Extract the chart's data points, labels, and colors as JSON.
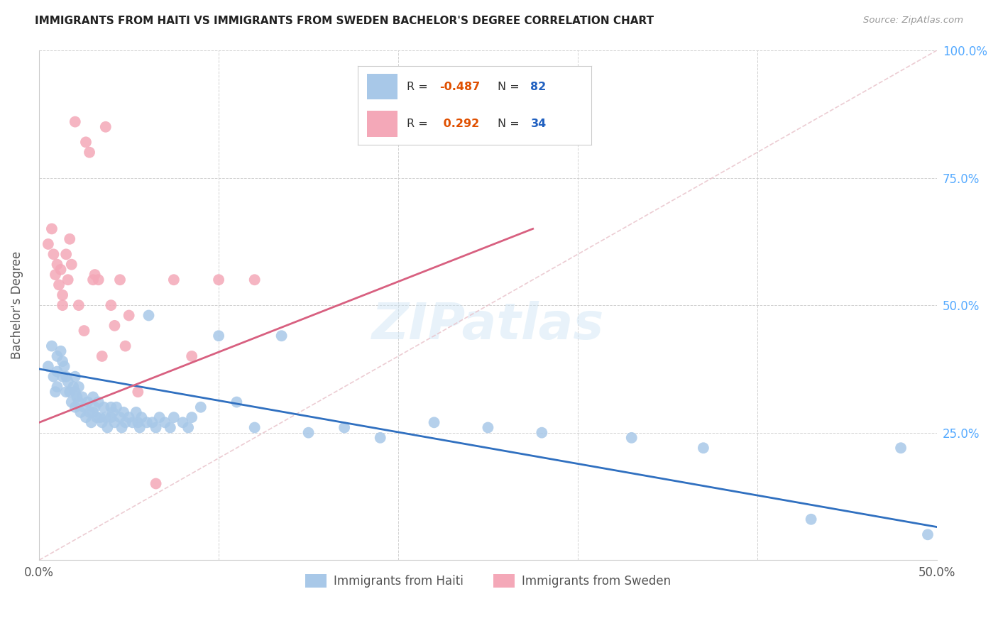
{
  "title": "IMMIGRANTS FROM HAITI VS IMMIGRANTS FROM SWEDEN BACHELOR'S DEGREE CORRELATION CHART",
  "source": "Source: ZipAtlas.com",
  "ylabel_label": "Bachelor's Degree",
  "xlim": [
    0.0,
    0.5
  ],
  "ylim": [
    0.0,
    1.0
  ],
  "haiti_R": -0.487,
  "haiti_N": 82,
  "sweden_R": 0.292,
  "sweden_N": 34,
  "haiti_color": "#a8c8e8",
  "sweden_color": "#f4a8b8",
  "haiti_line_color": "#3070c0",
  "sweden_line_color": "#d86080",
  "diagonal_color": "#e8c0c8",
  "haiti_scatter_x": [
    0.005,
    0.007,
    0.008,
    0.009,
    0.01,
    0.01,
    0.01,
    0.012,
    0.013,
    0.013,
    0.014,
    0.015,
    0.015,
    0.016,
    0.017,
    0.018,
    0.019,
    0.02,
    0.02,
    0.02,
    0.021,
    0.022,
    0.022,
    0.023,
    0.024,
    0.025,
    0.026,
    0.027,
    0.028,
    0.029,
    0.03,
    0.03,
    0.031,
    0.032,
    0.033,
    0.034,
    0.035,
    0.036,
    0.037,
    0.038,
    0.04,
    0.04,
    0.041,
    0.042,
    0.043,
    0.045,
    0.046,
    0.047,
    0.048,
    0.05,
    0.052,
    0.054,
    0.055,
    0.056,
    0.057,
    0.06,
    0.061,
    0.063,
    0.065,
    0.067,
    0.07,
    0.073,
    0.075,
    0.08,
    0.083,
    0.085,
    0.09,
    0.1,
    0.11,
    0.12,
    0.135,
    0.15,
    0.17,
    0.19,
    0.22,
    0.25,
    0.28,
    0.33,
    0.37,
    0.43,
    0.48,
    0.495
  ],
  "haiti_scatter_y": [
    0.38,
    0.42,
    0.36,
    0.33,
    0.4,
    0.37,
    0.34,
    0.41,
    0.39,
    0.36,
    0.38,
    0.36,
    0.33,
    0.35,
    0.33,
    0.31,
    0.34,
    0.36,
    0.33,
    0.3,
    0.32,
    0.34,
    0.31,
    0.29,
    0.32,
    0.3,
    0.28,
    0.31,
    0.29,
    0.27,
    0.32,
    0.29,
    0.3,
    0.28,
    0.31,
    0.28,
    0.27,
    0.3,
    0.28,
    0.26,
    0.3,
    0.28,
    0.29,
    0.27,
    0.3,
    0.28,
    0.26,
    0.29,
    0.27,
    0.28,
    0.27,
    0.29,
    0.27,
    0.26,
    0.28,
    0.27,
    0.48,
    0.27,
    0.26,
    0.28,
    0.27,
    0.26,
    0.28,
    0.27,
    0.26,
    0.28,
    0.3,
    0.44,
    0.31,
    0.26,
    0.44,
    0.25,
    0.26,
    0.24,
    0.27,
    0.26,
    0.25,
    0.24,
    0.22,
    0.08,
    0.22,
    0.05
  ],
  "sweden_scatter_x": [
    0.005,
    0.007,
    0.008,
    0.009,
    0.01,
    0.011,
    0.012,
    0.013,
    0.013,
    0.015,
    0.016,
    0.017,
    0.018,
    0.02,
    0.022,
    0.025,
    0.026,
    0.028,
    0.03,
    0.031,
    0.033,
    0.035,
    0.037,
    0.04,
    0.042,
    0.045,
    0.048,
    0.05,
    0.055,
    0.065,
    0.075,
    0.085,
    0.1,
    0.12
  ],
  "sweden_scatter_y": [
    0.62,
    0.65,
    0.6,
    0.56,
    0.58,
    0.54,
    0.57,
    0.52,
    0.5,
    0.6,
    0.55,
    0.63,
    0.58,
    0.86,
    0.5,
    0.45,
    0.82,
    0.8,
    0.55,
    0.56,
    0.55,
    0.4,
    0.85,
    0.5,
    0.46,
    0.55,
    0.42,
    0.48,
    0.33,
    0.15,
    0.55,
    0.4,
    0.55,
    0.55
  ],
  "haiti_trend": [
    0.0,
    0.5,
    0.375,
    0.065
  ],
  "sweden_trend": [
    0.0,
    0.275,
    0.27,
    0.65
  ],
  "diagonal": [
    0.0,
    0.5,
    0.0,
    1.0
  ]
}
